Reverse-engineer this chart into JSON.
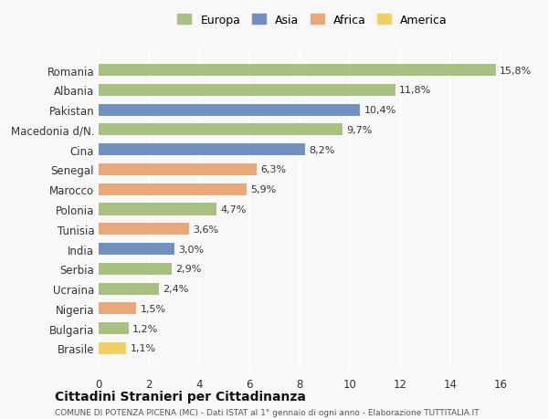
{
  "countries": [
    "Romania",
    "Albania",
    "Pakistan",
    "Macedonia d/N.",
    "Cina",
    "Senegal",
    "Marocco",
    "Polonia",
    "Tunisia",
    "India",
    "Serbia",
    "Ucraina",
    "Nigeria",
    "Bulgaria",
    "Brasile"
  ],
  "values": [
    15.8,
    11.8,
    10.4,
    9.7,
    8.2,
    6.3,
    5.9,
    4.7,
    3.6,
    3.0,
    2.9,
    2.4,
    1.5,
    1.2,
    1.1
  ],
  "continents": [
    "Europa",
    "Europa",
    "Asia",
    "Europa",
    "Asia",
    "Africa",
    "Africa",
    "Europa",
    "Africa",
    "Asia",
    "Europa",
    "Europa",
    "Africa",
    "Europa",
    "America"
  ],
  "continent_colors": {
    "Europa": "#a8c080",
    "Asia": "#7090c0",
    "Africa": "#e8a878",
    "America": "#f0d060"
  },
  "legend_order": [
    "Europa",
    "Asia",
    "Africa",
    "America"
  ],
  "title": "Cittadini Stranieri per Cittadinanza",
  "subtitle": "COMUNE DI POTENZA PICENA (MC) - Dati ISTAT al 1° gennaio di ogni anno - Elaborazione TUTTITALIA.IT",
  "xlim": [
    0,
    17
  ],
  "xticks": [
    0,
    2,
    4,
    6,
    8,
    10,
    12,
    14,
    16
  ],
  "background_color": "#f8f8f8",
  "grid_color": "#ffffff",
  "bar_height": 0.6
}
